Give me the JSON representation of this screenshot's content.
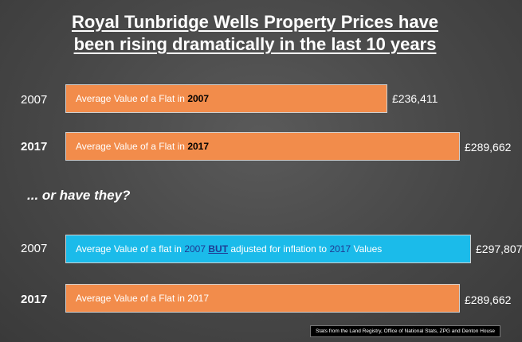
{
  "title_line1": "Royal Tunbridge Wells Property Prices have",
  "title_line2": "been rising dramatically in the last 10 years",
  "question": "... or have they?",
  "source": "Stats from the Land Registry, Office of National Stats, ZPG and Denton House",
  "colors": {
    "orange": "#f28c4b",
    "blue": "#1bbbea"
  },
  "chart_data": {
    "type": "bar",
    "orientation": "horizontal",
    "xlim": [
      0,
      480000
    ],
    "bars": [
      {
        "year": "2007",
        "label_pre": "Average Value of a Flat in ",
        "label_hl": "2007",
        "value": 236411,
        "value_label": "£236,411",
        "color": "#f28c4b"
      },
      {
        "year": "2017",
        "label_pre": "Average Value of a Flat in ",
        "label_hl": "2017",
        "value": 289662,
        "value_label": "£289,662",
        "color": "#f28c4b"
      },
      {
        "year": "2007",
        "label_a": "Average Value of a flat in ",
        "label_b": "2007",
        "label_c": " ",
        "label_d": "BUT",
        "label_e": " adjusted for inflation to ",
        "label_f": "2017",
        "label_g": " Values",
        "value": 297807,
        "value_label": "£297,807",
        "color": "#1bbbea"
      },
      {
        "year": "2017",
        "label_pre": "Average Value of a Flat in 2017",
        "value": 289662,
        "value_label": "£289,662",
        "color": "#f28c4b"
      }
    ]
  }
}
